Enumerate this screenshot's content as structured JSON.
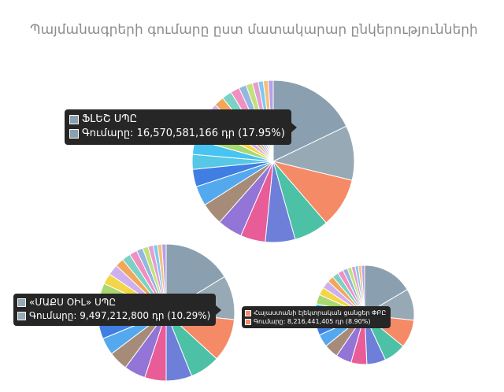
{
  "title": "Պայմանագրերի գումարը ըստ մատակարար ընկերությունների",
  "chart_data": [
    {
      "type": "pie",
      "title": "",
      "slices": [
        18,
        11,
        10,
        7,
        6,
        5,
        5,
        4.5,
        4,
        3.5,
        3,
        3,
        3,
        2.5,
        2.5,
        2,
        2,
        1.8,
        1.5,
        1.3,
        1.2,
        1,
        1,
        1
      ],
      "colors": [
        "#8aa0b0",
        "#98a9b6",
        "#f58a66",
        "#4cc1a6",
        "#6d7fd8",
        "#e85c98",
        "#9275d6",
        "#a68c78",
        "#54a9ee",
        "#3f7ee2",
        "#57c7e6",
        "#48c4f2",
        "#a8d86f",
        "#f2d648",
        "#cfb0ed",
        "#f2a65a",
        "#7bd2c4",
        "#f08fc2",
        "#93b7e0",
        "#c3e07d",
        "#e0a0d0",
        "#80c8f0",
        "#f5c07a",
        "#b8a0e8"
      ],
      "tooltip": {
        "name": "ՖԼԵՇ ՍՊԸ",
        "prefix": "Գումարը:",
        "amount": "16,570,581,166 դր (17.95%)",
        "color": "#8aa0b0"
      }
    },
    {
      "type": "pie",
      "title": "",
      "slices": [
        16,
        10.3,
        10,
        7,
        6,
        5,
        5,
        4.5,
        4,
        3.5,
        3.5,
        3,
        3,
        2.5,
        2.5,
        2,
        2,
        1.8,
        1.5,
        1.3,
        1.2,
        1,
        1,
        1
      ],
      "colors": [
        "#8aa0b0",
        "#98a9b6",
        "#f58a66",
        "#4cc1a6",
        "#6d7fd8",
        "#e85c98",
        "#9275d6",
        "#a68c78",
        "#54a9ee",
        "#3f7ee2",
        "#57c7e6",
        "#48c4f2",
        "#a8d86f",
        "#f2d648",
        "#cfb0ed",
        "#f2a65a",
        "#7bd2c4",
        "#f08fc2",
        "#93b7e0",
        "#c3e07d",
        "#e0a0d0",
        "#80c8f0",
        "#f5c07a",
        "#b8a0e8"
      ],
      "tooltip": {
        "name": "«ՄԱՔՍ ՕԻԼ» ՍՊԸ",
        "prefix": "Գումարը:",
        "amount": "9,497,212,800 դր (10.29%)",
        "color": "#98a9b6"
      }
    },
    {
      "type": "pie",
      "title": "",
      "slices": [
        16,
        10,
        8.9,
        7,
        6,
        5,
        5,
        4.5,
        4,
        3.5,
        3.5,
        3,
        3,
        2.5,
        2.5,
        2,
        2,
        1.8,
        1.5,
        1.3,
        1.2,
        1,
        1,
        1
      ],
      "colors": [
        "#8aa0b0",
        "#98a9b6",
        "#f58a66",
        "#4cc1a6",
        "#6d7fd8",
        "#e85c98",
        "#9275d6",
        "#a68c78",
        "#54a9ee",
        "#3f7ee2",
        "#57c7e6",
        "#48c4f2",
        "#a8d86f",
        "#f2d648",
        "#cfb0ed",
        "#f2a65a",
        "#7bd2c4",
        "#f08fc2",
        "#93b7e0",
        "#c3e07d",
        "#e0a0d0",
        "#80c8f0",
        "#f5c07a",
        "#b8a0e8"
      ],
      "tooltip": {
        "name": "Հայաստանի էլեկտրական ցանցեր ՓԲԸ",
        "prefix": "Գումարը:",
        "amount": "8,216,441,405 դր (8.90%)",
        "color": "#f58a66"
      }
    }
  ]
}
